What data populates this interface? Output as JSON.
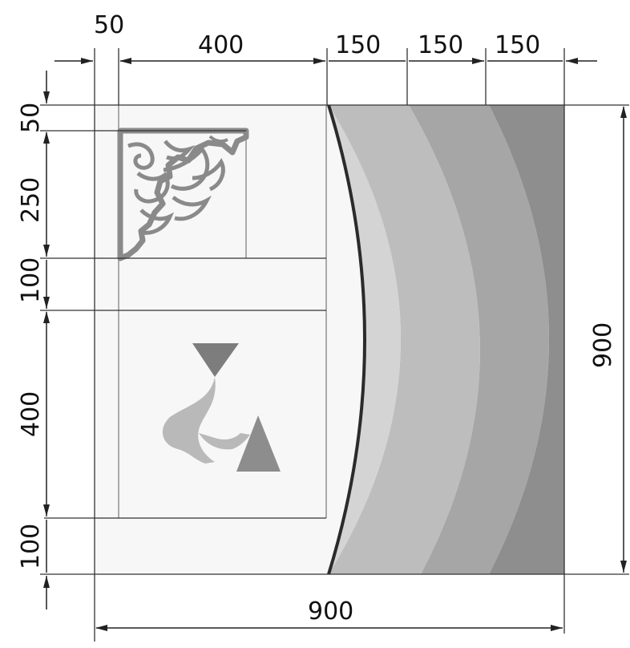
{
  "dimensions": {
    "top": {
      "margin": "50",
      "inset_width": "400",
      "band_1": "150",
      "band_2": "150",
      "band_3": "150"
    },
    "left": {
      "top_margin": "50",
      "ornament_height": "250",
      "middle_gap": "100",
      "logo_height": "400",
      "bottom_margin": "100"
    },
    "right": {
      "total_height": "900"
    },
    "bottom": {
      "total_width": "900"
    }
  },
  "colors": {
    "panel": "#f7f7f7",
    "band_1": "#d4d4d4",
    "band_2": "#bdbdbd",
    "band_3": "#a6a6a6",
    "band_4": "#8e8e8e",
    "arc_stroke": "#2b2b2b",
    "ornament": "#8a8a8a",
    "logo_dark": "#7d7d7d",
    "logo_light": "#b9b9b9",
    "lines": "#333333"
  },
  "icons": {
    "ornament": "floral-corner-ornament-icon",
    "logo": "stylized-letter-logo-icon"
  }
}
